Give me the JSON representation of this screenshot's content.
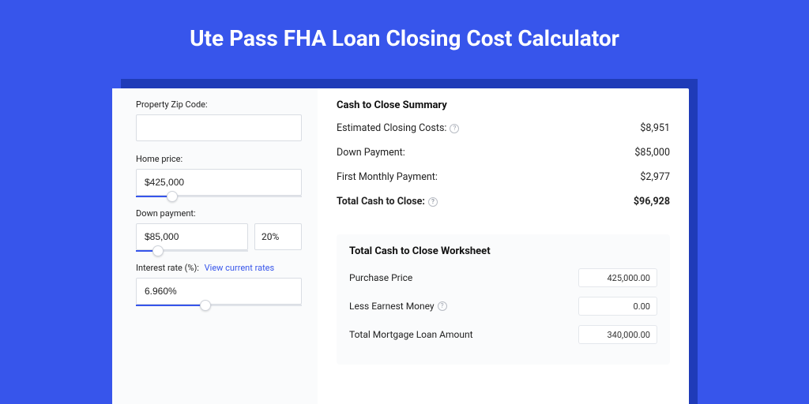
{
  "colors": {
    "background": "#3755eb",
    "shadow": "#1f3bb8",
    "panel": "#ffffff",
    "left_panel": "#fafbfc",
    "input_border": "#d9dde3",
    "slider_track": "#e0e3e9",
    "slider_fill": "#3755eb",
    "link": "#3755eb",
    "text": "#222222",
    "help_border": "#b8bcc4",
    "ws_val_border": "#e4e7ec"
  },
  "typography": {
    "title_fontsize": 28,
    "title_weight": 700,
    "label_fontsize": 11,
    "body_fontsize": 12.5,
    "section_title_fontsize": 13,
    "ws_val_fontsize": 11
  },
  "title": "Ute Pass FHA Loan Closing Cost Calculator",
  "left": {
    "zip": {
      "label": "Property Zip Code:",
      "value": ""
    },
    "home_price": {
      "label": "Home price:",
      "value": "$425,000",
      "slider_pct": 22
    },
    "down_payment": {
      "label": "Down payment:",
      "value": "$85,000",
      "pct": "20%",
      "slider_pct": 20
    },
    "interest_rate": {
      "label": "Interest rate (%):",
      "link": "View current rates",
      "value": "6.960%",
      "slider_pct": 42
    }
  },
  "summary": {
    "title": "Cash to Close Summary",
    "rows": [
      {
        "label": "Estimated Closing Costs:",
        "help": true,
        "value": "$8,951",
        "bold": false
      },
      {
        "label": "Down Payment:",
        "help": false,
        "value": "$85,000",
        "bold": false
      },
      {
        "label": "First Monthly Payment:",
        "help": false,
        "value": "$2,977",
        "bold": false
      },
      {
        "label": "Total Cash to Close:",
        "help": true,
        "value": "$96,928",
        "bold": true
      }
    ]
  },
  "worksheet": {
    "title": "Total Cash to Close Worksheet",
    "rows": [
      {
        "label": "Purchase Price",
        "help": false,
        "value": "425,000.00"
      },
      {
        "label": "Less Earnest Money",
        "help": true,
        "value": "0.00"
      },
      {
        "label": "Total Mortgage Loan Amount",
        "help": false,
        "value": "340,000.00"
      }
    ]
  }
}
